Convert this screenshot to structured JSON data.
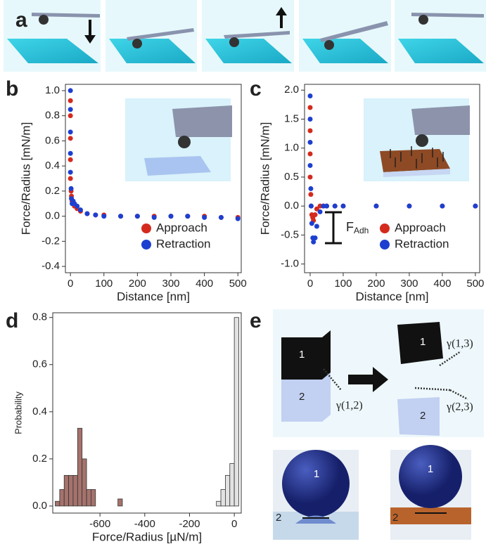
{
  "panel_labels": [
    "a",
    "b",
    "c",
    "d",
    "e"
  ],
  "chart_data": [
    {
      "type": "scatter",
      "x_label": "Distance [nm]",
      "y_label": "Force/Radius [mN/m]",
      "x": [
        0,
        0,
        0,
        0,
        0,
        2,
        3,
        5,
        8,
        12,
        20,
        30,
        50,
        75,
        100,
        150,
        200,
        250,
        300,
        350,
        400,
        450,
        500
      ],
      "series": [
        {
          "name": "Approach",
          "color": "#d42a1e",
          "values": [
            0.92,
            0.8,
            0.62,
            0.45,
            0.3,
            0.2,
            0.16,
            0.12,
            0.1,
            0.08,
            0.06,
            0.04,
            0.02,
            0.01,
            0.01,
            0,
            0,
            0,
            0,
            0,
            0,
            -0.01,
            -0.01
          ]
        },
        {
          "name": "Retraction",
          "color": "#1d3fd0",
          "values": [
            1.0,
            0.85,
            0.67,
            0.5,
            0.35,
            0.22,
            0.14,
            0.1,
            0.12,
            0.1,
            0.08,
            0.05,
            0.02,
            0.01,
            0,
            0,
            0,
            -0.01,
            0,
            0,
            -0.01,
            -0.01,
            -0.02
          ]
        }
      ],
      "xlim": [
        -15,
        510
      ],
      "ylim": [
        -0.45,
        1.05
      ],
      "xticks": [
        0,
        100,
        200,
        300,
        400,
        500
      ],
      "yticks": [
        -0.4,
        -0.2,
        {
          "value": 0,
          "label": "0.0"
        },
        0.2,
        0.4,
        0.6,
        0.8,
        {
          "value": 1,
          "label": "1.0"
        }
      ],
      "legend": "lower right"
    },
    {
      "type": "scatter",
      "x_label": "Distance [nm]",
      "y_label": "Force/Radius [mN/m]",
      "x": [
        0,
        0,
        0,
        0,
        2,
        3,
        5,
        8,
        10,
        15,
        20,
        30,
        40,
        50,
        75,
        100,
        200,
        300,
        400,
        500
      ],
      "series": [
        {
          "name": "Approach",
          "color": "#d42a1e",
          "values": [
            1.7,
            1.3,
            0.9,
            0.5,
            0.2,
            0,
            -0.15,
            -0.2,
            -0.25,
            -0.15,
            -0.05,
            0,
            0,
            0,
            0,
            0,
            0,
            0,
            0,
            0
          ]
        },
        {
          "name": "Retraction",
          "color": "#1d3fd0",
          "values": [
            1.9,
            1.5,
            1.1,
            0.7,
            0.3,
            0,
            -0.3,
            -0.55,
            -0.62,
            -0.55,
            -0.35,
            -0.1,
            0,
            0,
            0,
            0,
            0,
            0,
            0,
            0
          ]
        }
      ],
      "xlim": [
        -17,
        513
      ],
      "ylim": [
        -1.15,
        2.1
      ],
      "xticks": [
        0,
        100,
        200,
        300,
        400,
        500
      ],
      "yticks": [
        {
          "value": -1,
          "label": "-1.0"
        },
        -0.5,
        {
          "value": 0,
          "label": "0.0"
        },
        0.5,
        {
          "value": 1,
          "label": "1.0"
        },
        1.5,
        {
          "value": 2,
          "label": "2.0"
        }
      ],
      "legend": "lower right",
      "annotation": {
        "text": "F",
        "subscript": "Adh"
      }
    },
    {
      "type": "histogram",
      "x_label": "Force/Radius [µN/m]",
      "y_label": "Probability",
      "series": [
        {
          "color": "#a5726c",
          "bins": [
            -800,
            -780,
            -760,
            -740,
            -720,
            -700,
            -680,
            -660,
            -640,
            -620,
            -600,
            -580,
            -560,
            -540,
            -520,
            -500
          ],
          "values": [
            0.02,
            0.07,
            0.13,
            0.13,
            0.13,
            0.33,
            0.2,
            0.07,
            0.07,
            0,
            0,
            0,
            0,
            0,
            0.03
          ]
        },
        {
          "color": "#e2e2e2",
          "bins": [
            -80,
            -60,
            -40,
            -20,
            0,
            20
          ],
          "values": [
            0.02,
            0.07,
            0.13,
            0.18,
            0.8
          ]
        }
      ],
      "xlim": [
        -811,
        31
      ],
      "ylim": [
        -0.03,
        0.82
      ],
      "xticks": [
        -600,
        -400,
        -200,
        0
      ],
      "yticks": [
        {
          "value": 0,
          "label": "0.0"
        },
        0.2,
        0.4,
        0.6,
        0.8
      ]
    }
  ],
  "diagram": {
    "top_labels": [
      "1",
      "2",
      "1",
      "2"
    ],
    "energies": [
      "γ(1,2)",
      "γ(1,3)",
      "γ(2,3)"
    ],
    "photo_labels": [
      "1",
      "2",
      "1",
      "2"
    ]
  }
}
